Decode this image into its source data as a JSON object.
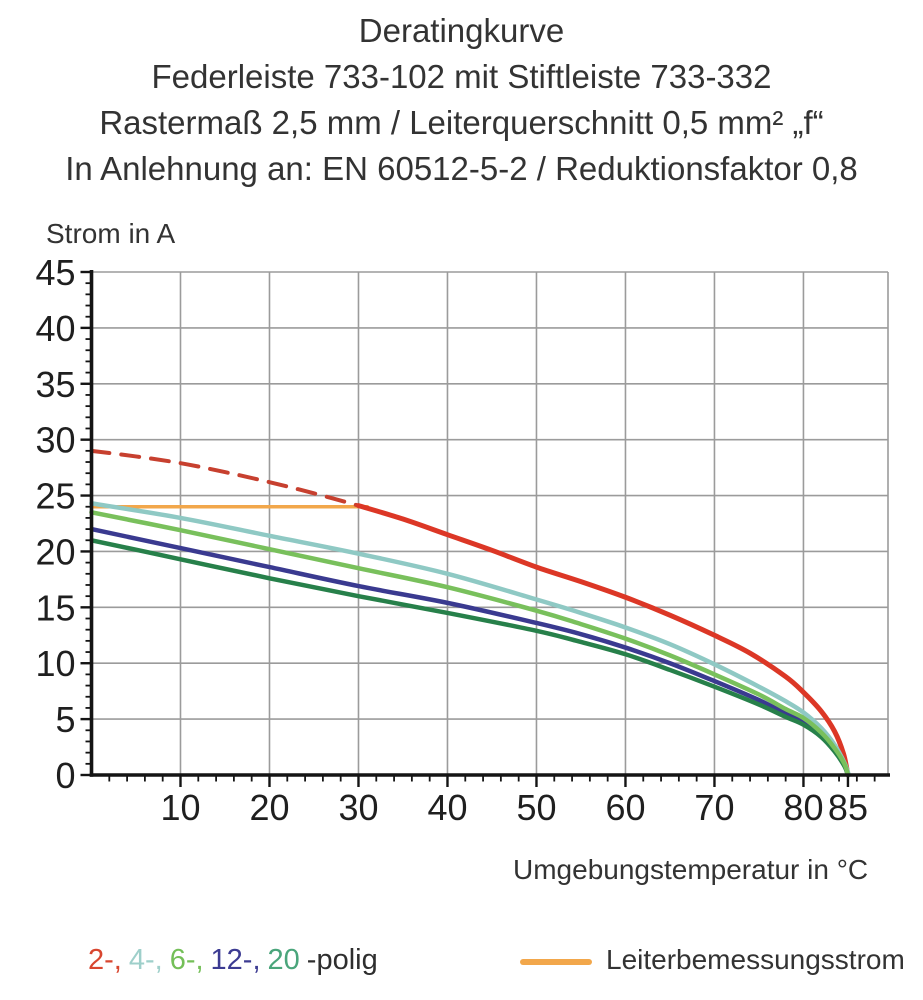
{
  "title": {
    "line1": "Deratingkurve",
    "line2": "Federleiste 733-102 mit Stiftleiste 733-332",
    "line3": "Rastermaß 2,5 mm / Leiterquerschnitt 0,5 mm² „f“",
    "line4": "In Anlehnung an: EN 60512-5-2 / Reduktionsfaktor 0,8"
  },
  "chart_data": {
    "type": "line",
    "title": "Deratingkurve",
    "ylabel": "Strom in A",
    "xlabel": "Umgebungstemperatur in °C",
    "xlim": [
      0,
      89.5
    ],
    "ylim": [
      0,
      45
    ],
    "x_major_ticks": [
      10,
      20,
      30,
      40,
      50,
      60,
      70,
      80,
      85
    ],
    "x_minor_tick_step": 2,
    "y_major_ticks": [
      0,
      5,
      10,
      15,
      20,
      25,
      30,
      35,
      40,
      45
    ],
    "y_minor_tick_step": 1,
    "grid": true,
    "grid_color": "#9b9b9b",
    "series": [
      {
        "name": "Leiterbemessungsstrom",
        "color": "#f2a74b",
        "style": "solid",
        "width": 3.5,
        "points": [
          [
            0,
            24
          ],
          [
            31,
            24
          ]
        ]
      },
      {
        "name": "2-polig (oberhalb Leiterbemessungsstrom, gestrichelt)",
        "color": "#c7402f",
        "style": "dashed",
        "width": 4,
        "points": [
          [
            0,
            29
          ],
          [
            5,
            28.5
          ],
          [
            10,
            27.9
          ],
          [
            15,
            27.1
          ],
          [
            20,
            26.2
          ],
          [
            25,
            25.2
          ],
          [
            30,
            24.1
          ]
        ]
      },
      {
        "name": "2-polig",
        "color": "#dc3726",
        "style": "solid",
        "width": 5,
        "points": [
          [
            30,
            24.1
          ],
          [
            35,
            22.9
          ],
          [
            40,
            21.5
          ],
          [
            45,
            20.1
          ],
          [
            50,
            18.6
          ],
          [
            55,
            17.3
          ],
          [
            60,
            15.9
          ],
          [
            65,
            14.3
          ],
          [
            70,
            12.5
          ],
          [
            74,
            10.9
          ],
          [
            78,
            8.8
          ],
          [
            80,
            7.4
          ],
          [
            82,
            5.7
          ],
          [
            83.5,
            3.9
          ],
          [
            84.5,
            1.9
          ],
          [
            85,
            0
          ]
        ]
      },
      {
        "name": "12-polig",
        "color": "#3a3a90",
        "style": "solid",
        "width": 4.5,
        "points": [
          [
            0,
            22.0
          ],
          [
            10,
            20.3
          ],
          [
            20,
            18.6
          ],
          [
            30,
            16.9
          ],
          [
            40,
            15.4
          ],
          [
            50,
            13.6
          ],
          [
            55,
            12.6
          ],
          [
            60,
            11.4
          ],
          [
            65,
            10.0
          ],
          [
            70,
            8.4
          ],
          [
            75,
            6.7
          ],
          [
            78,
            5.5
          ],
          [
            80,
            4.8
          ],
          [
            82,
            3.6
          ],
          [
            83.5,
            2.3
          ],
          [
            84.6,
            0.9
          ],
          [
            85,
            0
          ]
        ]
      },
      {
        "name": "4-polig",
        "color": "#8fc9c4",
        "style": "solid",
        "width": 4.5,
        "points": [
          [
            0,
            24.3
          ],
          [
            10,
            23.0
          ],
          [
            20,
            21.4
          ],
          [
            30,
            19.8
          ],
          [
            40,
            18.0
          ],
          [
            50,
            15.7
          ],
          [
            55,
            14.5
          ],
          [
            60,
            13.2
          ],
          [
            65,
            11.7
          ],
          [
            70,
            9.9
          ],
          [
            75,
            7.9
          ],
          [
            78,
            6.6
          ],
          [
            80,
            5.6
          ],
          [
            82,
            4.2
          ],
          [
            83.5,
            2.7
          ],
          [
            84.6,
            1.1
          ],
          [
            85.1,
            0
          ]
        ]
      },
      {
        "name": "20-polig",
        "color": "#27804a",
        "style": "solid",
        "width": 4.5,
        "points": [
          [
            0,
            21.0
          ],
          [
            10,
            19.3
          ],
          [
            20,
            17.6
          ],
          [
            30,
            16.0
          ],
          [
            40,
            14.5
          ],
          [
            50,
            12.9
          ],
          [
            55,
            11.9
          ],
          [
            60,
            10.8
          ],
          [
            65,
            9.4
          ],
          [
            70,
            7.9
          ],
          [
            75,
            6.3
          ],
          [
            78,
            5.2
          ],
          [
            80,
            4.5
          ],
          [
            82,
            3.4
          ],
          [
            83.5,
            2.1
          ],
          [
            84.6,
            0.8
          ],
          [
            85,
            0
          ]
        ]
      },
      {
        "name": "6-polig",
        "color": "#79c05c",
        "style": "solid",
        "width": 4.5,
        "points": [
          [
            0,
            23.5
          ],
          [
            10,
            21.9
          ],
          [
            20,
            20.2
          ],
          [
            30,
            18.5
          ],
          [
            40,
            16.8
          ],
          [
            50,
            14.7
          ],
          [
            55,
            13.5
          ],
          [
            60,
            12.2
          ],
          [
            65,
            10.7
          ],
          [
            70,
            9.0
          ],
          [
            75,
            7.2
          ],
          [
            78,
            5.9
          ],
          [
            80,
            5.1
          ],
          [
            82,
            3.8
          ],
          [
            83.5,
            2.4
          ],
          [
            84.6,
            1.0
          ],
          [
            85,
            0
          ]
        ]
      }
    ]
  },
  "legend": {
    "poles": [
      {
        "label": "2-,",
        "color": "#d8462f"
      },
      {
        "label": "4-,",
        "color": "#9ecfca"
      },
      {
        "label": "6-,",
        "color": "#74bf58"
      },
      {
        "label": "12-,",
        "color": "#3c3b92"
      },
      {
        "label": "20",
        "color": "#4aa57b"
      }
    ],
    "poles_suffix": "-polig",
    "line_legend": {
      "label": "Leiterbemessungsstrom",
      "color": "#f2a74b"
    }
  },
  "colors": {
    "text": "#333333",
    "tick_label": "#1f1f1f",
    "axis": "#141414",
    "grid": "#9b9b9b",
    "background": "#ffffff"
  }
}
